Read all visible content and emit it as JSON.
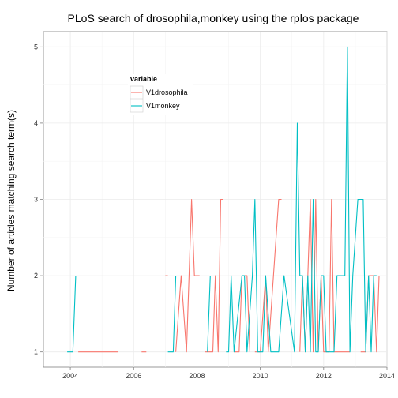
{
  "chart_data": {
    "type": "line",
    "title": "PLoS search of drosophila,monkey using the rplos package",
    "xlabel": "",
    "ylabel": "Number of articles matching search term(s)",
    "xlim": [
      2003.15,
      2014.0
    ],
    "ylim": [
      0.8,
      5.2
    ],
    "x_ticks": [
      2004,
      2006,
      2008,
      2010,
      2012,
      2014
    ],
    "x_tick_labels": [
      "2004",
      "2006",
      "2008",
      "2010",
      "2012",
      "2014"
    ],
    "y_ticks": [
      1,
      2,
      3,
      4,
      5
    ],
    "y_tick_labels": [
      "1",
      "2",
      "3",
      "4",
      "5"
    ],
    "grid": true,
    "legend": {
      "title": "variable",
      "position": "top-left",
      "entries": [
        "V1drosophila",
        "V1monkey"
      ]
    },
    "colors": {
      "V1drosophila": "#F8766D",
      "V1monkey": "#00BFC4"
    },
    "series": [
      {
        "name": "V1drosophila",
        "segments": [
          [
            [
              2004.25,
              1
            ],
            [
              2005.5,
              1
            ]
          ],
          [
            [
              2006.25,
              1
            ],
            [
              2006.4,
              1
            ]
          ],
          [
            [
              2007.0,
              2
            ],
            [
              2007.08,
              2
            ]
          ],
          [
            [
              2007.33,
              1
            ],
            [
              2007.5,
              2
            ],
            [
              2007.67,
              1
            ],
            [
              2007.83,
              3
            ],
            [
              2007.92,
              2
            ],
            [
              2008.08,
              2
            ]
          ],
          [
            [
              2008.25,
              1
            ],
            [
              2008.5,
              1
            ],
            [
              2008.58,
              2
            ],
            [
              2008.67,
              1
            ],
            [
              2008.75,
              3
            ],
            [
              2008.83,
              3
            ]
          ],
          [
            [
              2009.17,
              1
            ],
            [
              2009.33,
              1
            ],
            [
              2009.42,
              2
            ],
            [
              2009.58,
              2
            ],
            [
              2009.67,
              1
            ]
          ],
          [
            [
              2009.83,
              1
            ],
            [
              2010.0,
              1
            ],
            [
              2010.17,
              2
            ],
            [
              2010.25,
              1
            ],
            [
              2010.58,
              3
            ],
            [
              2010.67,
              3
            ]
          ],
          [
            [
              2011.25,
              1
            ],
            [
              2011.33,
              2
            ],
            [
              2011.42,
              1
            ],
            [
              2011.58,
              3
            ],
            [
              2011.67,
              1
            ],
            [
              2011.75,
              3
            ],
            [
              2011.83,
              1
            ],
            [
              2011.92,
              2
            ],
            [
              2012.0,
              1
            ],
            [
              2012.17,
              1
            ],
            [
              2012.25,
              3
            ],
            [
              2012.33,
              1
            ],
            [
              2012.75,
              1
            ],
            [
              2012.83,
              1
            ]
          ],
          [
            [
              2013.17,
              1
            ],
            [
              2013.33,
              1
            ],
            [
              2013.42,
              2
            ],
            [
              2013.58,
              2
            ],
            [
              2013.67,
              1
            ],
            [
              2013.75,
              2
            ]
          ]
        ]
      },
      {
        "name": "V1monkey",
        "segments": [
          [
            [
              2003.9,
              1
            ],
            [
              2004.08,
              1
            ],
            [
              2004.17,
              2
            ]
          ],
          [
            [
              2007.08,
              1
            ],
            [
              2007.25,
              1
            ],
            [
              2007.33,
              2
            ]
          ],
          [
            [
              2008.33,
              1
            ],
            [
              2008.42,
              2
            ]
          ],
          [
            [
              2008.92,
              1
            ],
            [
              2009.0,
              1
            ],
            [
              2009.08,
              2
            ],
            [
              2009.17,
              1
            ],
            [
              2009.42,
              2
            ],
            [
              2009.5,
              2
            ],
            [
              2009.58,
              1
            ],
            [
              2009.75,
              2
            ],
            [
              2009.83,
              3
            ],
            [
              2009.92,
              1
            ],
            [
              2010.08,
              1
            ],
            [
              2010.17,
              2
            ],
            [
              2010.33,
              1
            ],
            [
              2010.58,
              1
            ],
            [
              2010.75,
              2
            ],
            [
              2011.08,
              1
            ],
            [
              2011.17,
              4
            ],
            [
              2011.25,
              2
            ],
            [
              2011.33,
              2
            ],
            [
              2011.42,
              1
            ],
            [
              2011.5,
              2
            ],
            [
              2011.58,
              1
            ],
            [
              2011.67,
              3
            ],
            [
              2011.75,
              1
            ],
            [
              2011.83,
              1
            ],
            [
              2011.92,
              2
            ],
            [
              2012.0,
              2
            ],
            [
              2012.08,
              1
            ],
            [
              2012.33,
              1
            ],
            [
              2012.42,
              2
            ],
            [
              2012.67,
              2
            ],
            [
              2012.75,
              5
            ],
            [
              2012.83,
              1
            ],
            [
              2012.92,
              2
            ],
            [
              2013.08,
              3
            ],
            [
              2013.25,
              3
            ],
            [
              2013.33,
              1
            ],
            [
              2013.42,
              2
            ],
            [
              2013.5,
              1
            ],
            [
              2013.58,
              2
            ],
            [
              2013.67,
              2
            ]
          ]
        ]
      }
    ]
  }
}
